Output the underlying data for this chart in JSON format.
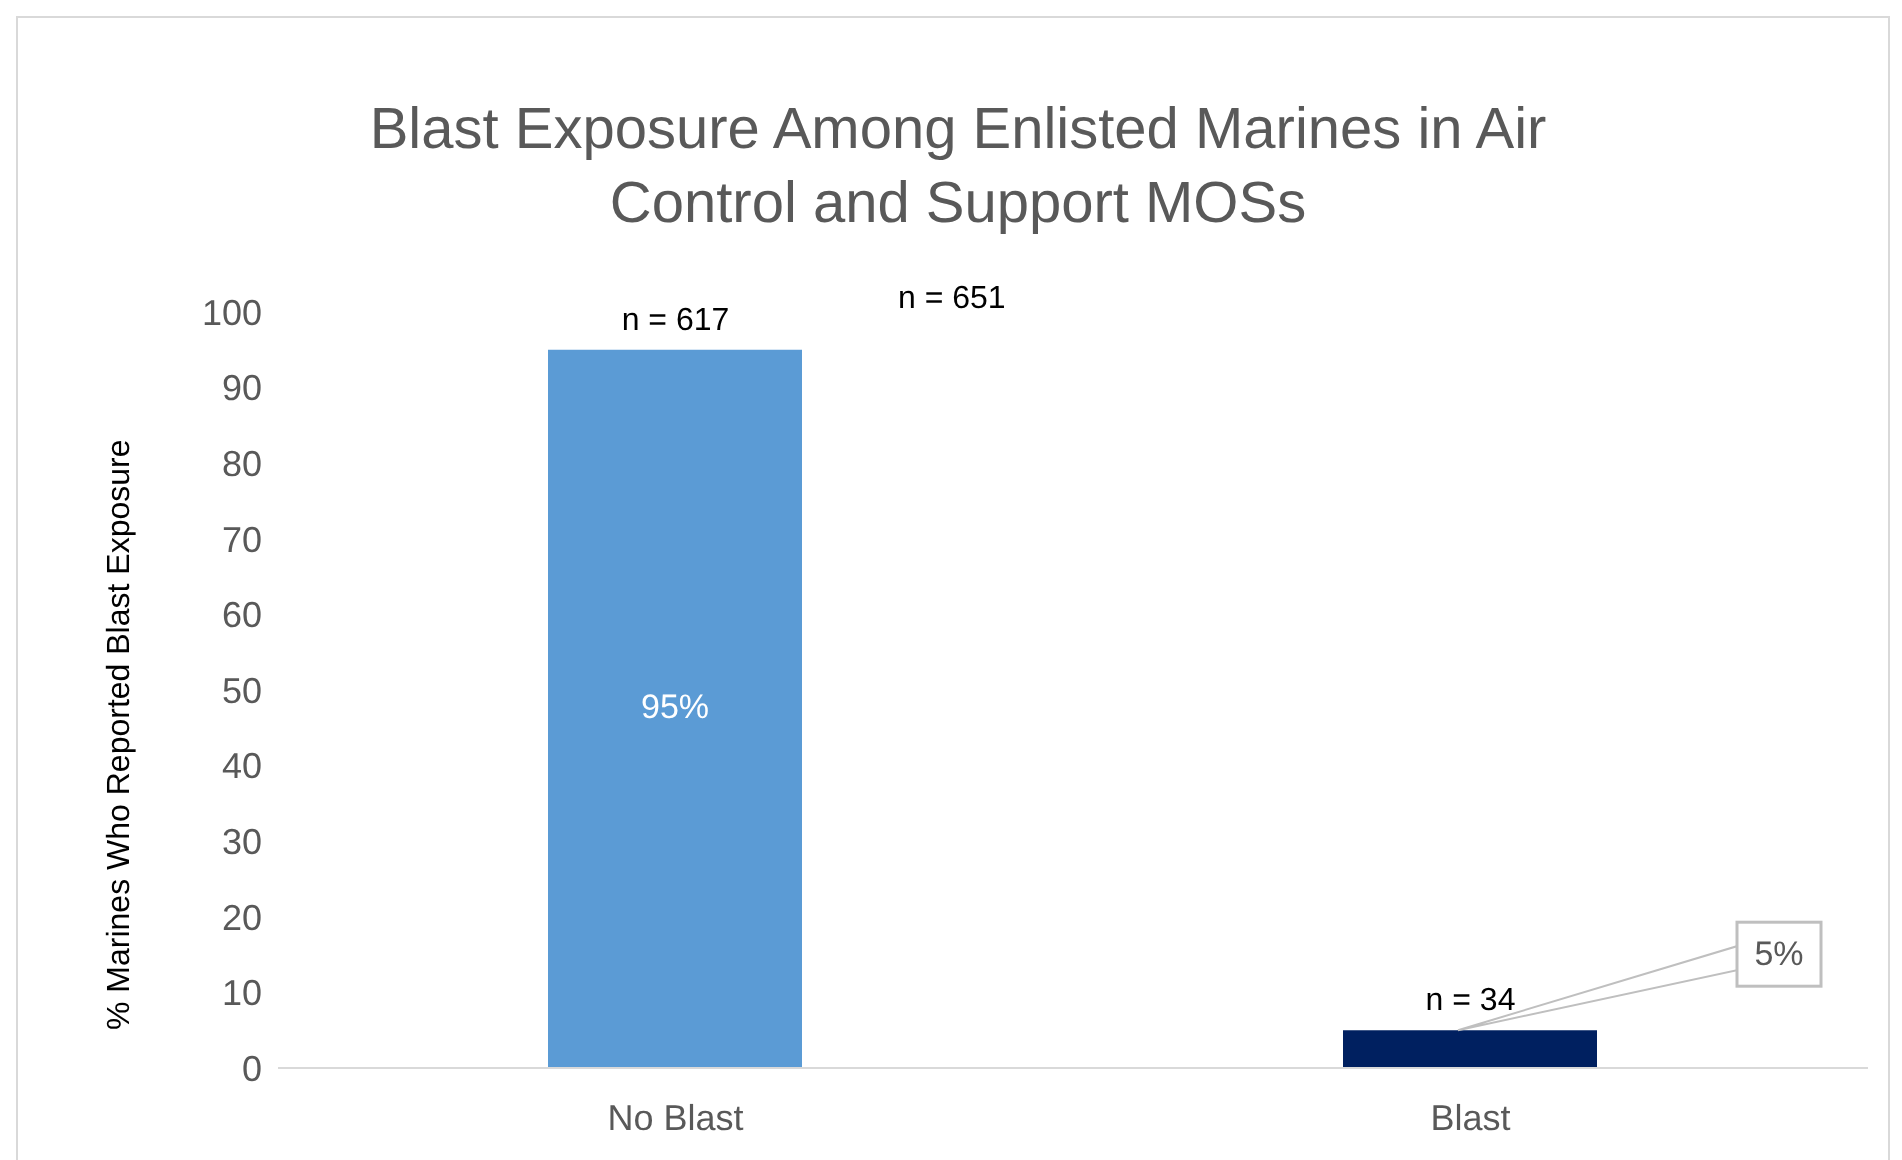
{
  "chart_data": {
    "type": "bar",
    "title": "Blast Exposure Among Enlisted Marines in Air Control and Support MOSs",
    "ylabel": "% Marines Who Reported Blast Exposure",
    "categories": [
      "No Blast",
      "Blast"
    ],
    "values": [
      95,
      5
    ],
    "colors": [
      "#5b9bd5",
      "#002060"
    ],
    "value_labels": [
      "95%",
      "5%"
    ],
    "ylim": [
      0,
      100
    ],
    "yticks": [
      0,
      10,
      20,
      30,
      40,
      50,
      60,
      70,
      80,
      90,
      100
    ],
    "grid": false,
    "legend": false,
    "annotations": [
      {
        "text": "n = 617",
        "x": "No Blast",
        "y": 95
      },
      {
        "text": "n = 34",
        "x": "Blast",
        "y": 5
      },
      "n = 651"
    ]
  }
}
